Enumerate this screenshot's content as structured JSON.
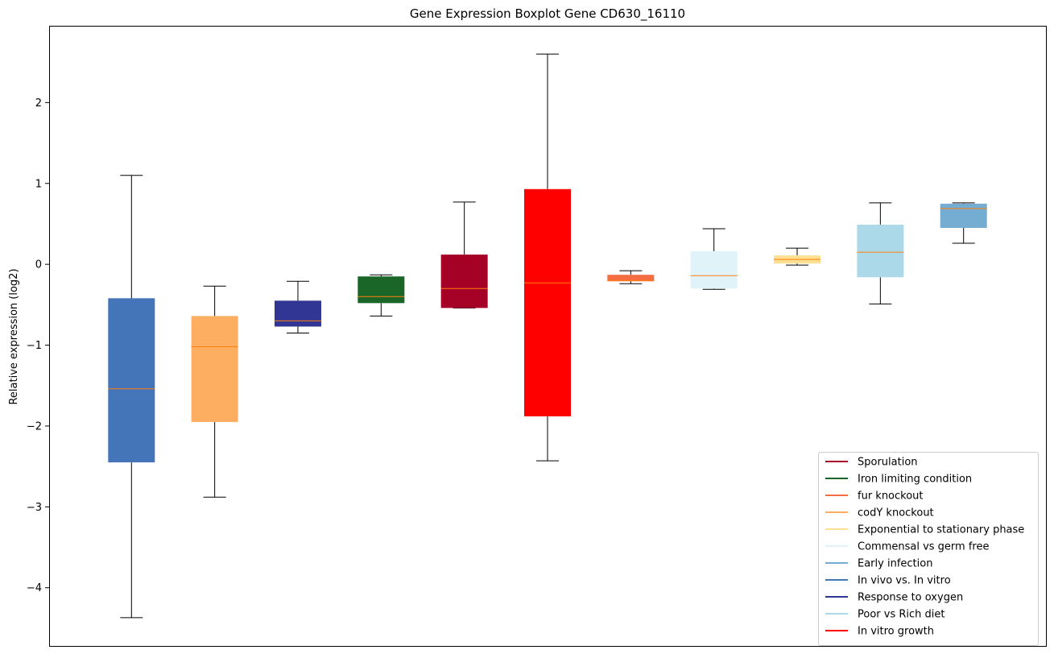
{
  "chart_data": {
    "type": "boxplot",
    "title": "Gene Expression Boxplot Gene CD630_16110",
    "xlabel": "",
    "ylabel": "Relative expression (log2)",
    "ylim": [
      -4.72,
      2.95
    ],
    "yticks": [
      {
        "value": 2,
        "label": "2"
      },
      {
        "value": 1,
        "label": "1"
      },
      {
        "value": 0,
        "label": "0"
      },
      {
        "value": -1,
        "label": "−1"
      },
      {
        "value": -2,
        "label": "−2"
      },
      {
        "value": -3,
        "label": "−3"
      },
      {
        "value": -4,
        "label": "−4"
      }
    ],
    "grid": false,
    "legend_position": "bottom-right",
    "median_color": "#ff7f0e",
    "boxes": [
      {
        "series": "In vivo vs. In vitro",
        "color": "#4575b9",
        "whisker_low": -4.37,
        "q1": -2.45,
        "median": -1.54,
        "q3": -0.42,
        "whisker_high": 1.1
      },
      {
        "series": "codY knockout",
        "color": "#fdae61",
        "whisker_low": -2.88,
        "q1": -1.95,
        "median": -1.02,
        "q3": -0.64,
        "whisker_high": -0.27
      },
      {
        "series": "Response to oxygen",
        "color": "#313695",
        "whisker_low": -0.85,
        "q1": -0.77,
        "median": -0.7,
        "q3": -0.45,
        "whisker_high": -0.21
      },
      {
        "series": "Iron limiting condition",
        "color": "#1a6629",
        "whisker_low": -0.64,
        "q1": -0.48,
        "median": -0.4,
        "q3": -0.15,
        "whisker_high": -0.13
      },
      {
        "series": "Sporulation",
        "color": "#a50026",
        "whisker_low": -0.54,
        "q1": -0.54,
        "median": -0.3,
        "q3": 0.12,
        "whisker_high": 0.77
      },
      {
        "series": "In vitro growth",
        "color": "#ff0000",
        "whisker_low": -2.43,
        "q1": -1.88,
        "median": -0.23,
        "q3": 0.93,
        "whisker_high": 2.6
      },
      {
        "series": "fur knockout",
        "color": "#f46d43",
        "whisker_low": -0.24,
        "q1": -0.21,
        "median": -0.2,
        "q3": -0.13,
        "whisker_high": -0.08
      },
      {
        "series": "Commensal vs germ free",
        "color": "#e0f3f8",
        "whisker_low": -0.31,
        "q1": -0.3,
        "median": -0.14,
        "q3": 0.16,
        "whisker_high": 0.44
      },
      {
        "series": "Exponential to stationary phase",
        "color": "#fee090",
        "whisker_low": -0.01,
        "q1": 0.01,
        "median": 0.06,
        "q3": 0.11,
        "whisker_high": 0.2
      },
      {
        "series": "Poor vs Rich diet",
        "color": "#abd9e9",
        "whisker_low": -0.49,
        "q1": -0.16,
        "median": 0.15,
        "q3": 0.49,
        "whisker_high": 0.76
      },
      {
        "series": "Early infection",
        "color": "#74add1",
        "whisker_low": 0.26,
        "q1": 0.45,
        "median": 0.69,
        "q3": 0.75,
        "whisker_high": 0.76
      }
    ],
    "legend": [
      {
        "label": "Sporulation",
        "color": "#a50026"
      },
      {
        "label": "Iron limiting condition",
        "color": "#1a6629"
      },
      {
        "label": "fur knockout",
        "color": "#f46d43"
      },
      {
        "label": "codY knockout",
        "color": "#fdae61"
      },
      {
        "label": "Exponential to stationary phase",
        "color": "#fee090"
      },
      {
        "label": "Commensal vs germ free",
        "color": "#e0f3f8"
      },
      {
        "label": "Early infection",
        "color": "#74add1"
      },
      {
        "label": "In vivo vs. In vitro",
        "color": "#4575b9"
      },
      {
        "label": "Response to oxygen",
        "color": "#313695"
      },
      {
        "label": "Poor vs Rich diet",
        "color": "#abd9e9"
      },
      {
        "label": "In vitro growth",
        "color": "#ff0000"
      }
    ]
  }
}
